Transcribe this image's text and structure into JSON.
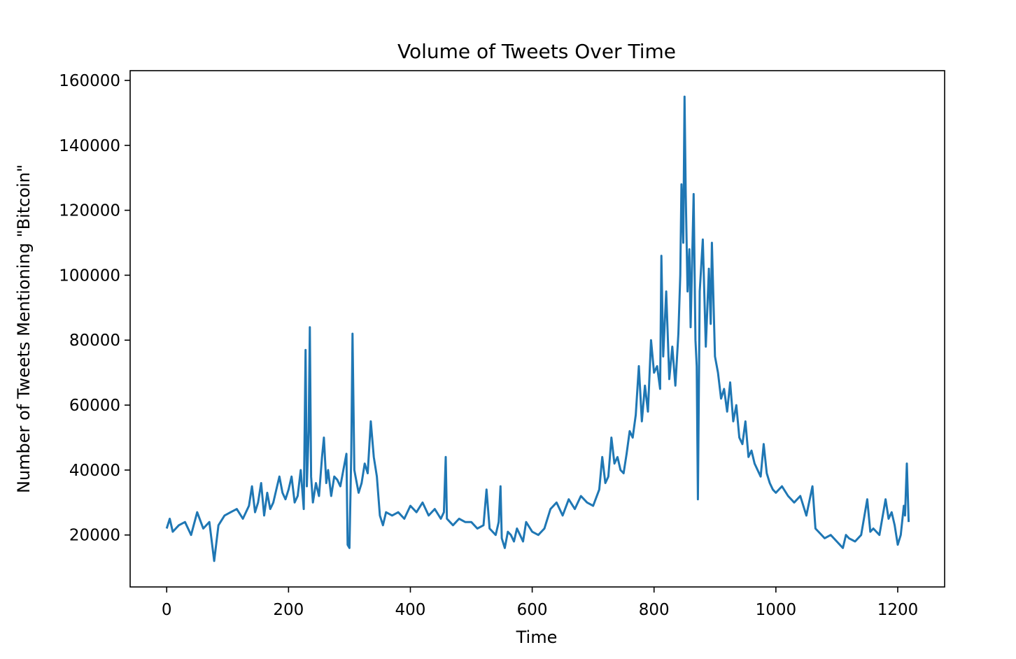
{
  "colors": {
    "series": "#1f77b4",
    "axes": "#000000",
    "background": "#ffffff"
  },
  "chart_data": {
    "type": "line",
    "title": "Volume of Tweets Over Time",
    "xlabel": "Time",
    "ylabel": "Number of Tweets Mentioning \"Bitcoin\"",
    "xlim": [
      -60,
      1277
    ],
    "ylim": [
      4000,
      163000
    ],
    "xticks": [
      0,
      200,
      400,
      600,
      800,
      1000,
      1200
    ],
    "xtick_labels": [
      "0",
      "200",
      "400",
      "600",
      "800",
      "1000",
      "1200"
    ],
    "yticks": [
      20000,
      40000,
      60000,
      80000,
      100000,
      120000,
      140000,
      160000
    ],
    "ytick_labels": [
      "20000",
      "40000",
      "60000",
      "80000",
      "100000",
      "120000",
      "140000",
      "160000"
    ],
    "grid": false,
    "legend": "none",
    "series": [
      {
        "x": [
          0,
          5,
          10,
          20,
          30,
          40,
          50,
          60,
          70,
          78,
          85,
          95,
          105,
          115,
          125,
          135,
          140,
          145,
          150,
          155,
          160,
          165,
          170,
          175,
          180,
          185,
          190,
          195,
          200,
          205,
          210,
          215,
          220,
          225,
          228,
          230,
          233,
          235,
          237,
          240,
          245,
          250,
          255,
          258,
          262,
          265,
          270,
          275,
          280,
          285,
          290,
          295,
          297,
          300,
          303,
          305,
          308,
          310,
          315,
          320,
          325,
          330,
          335,
          340,
          345,
          350,
          355,
          360,
          370,
          380,
          390,
          400,
          410,
          420,
          430,
          440,
          450,
          455,
          458,
          460,
          465,
          470,
          480,
          490,
          500,
          510,
          520,
          525,
          530,
          540,
          545,
          548,
          550,
          555,
          560,
          565,
          570,
          575,
          580,
          585,
          590,
          600,
          610,
          620,
          630,
          640,
          650,
          660,
          670,
          680,
          690,
          700,
          710,
          715,
          720,
          725,
          730,
          735,
          740,
          745,
          750,
          755,
          760,
          765,
          770,
          775,
          780,
          785,
          790,
          795,
          800,
          805,
          810,
          812,
          815,
          820,
          825,
          830,
          835,
          840,
          843,
          845,
          848,
          850,
          852,
          855,
          858,
          860,
          865,
          868,
          870,
          872,
          875,
          880,
          885,
          890,
          893,
          895,
          900,
          905,
          910,
          915,
          920,
          925,
          930,
          935,
          940,
          945,
          950,
          955,
          960,
          965,
          970,
          975,
          980,
          985,
          990,
          995,
          1000,
          1010,
          1020,
          1030,
          1040,
          1050,
          1060,
          1065,
          1070,
          1080,
          1090,
          1100,
          1110,
          1115,
          1120,
          1130,
          1140,
          1150,
          1155,
          1160,
          1170,
          1180,
          1185,
          1190,
          1195,
          1200,
          1205,
          1210,
          1212,
          1215,
          1218
        ],
        "y": [
          22000,
          25000,
          21000,
          23000,
          24000,
          20000,
          27000,
          22000,
          24000,
          12000,
          23000,
          26000,
          27000,
          28000,
          25000,
          29000,
          35000,
          27000,
          30000,
          36000,
          26000,
          33000,
          28000,
          30000,
          34000,
          38000,
          33000,
          31000,
          34000,
          38000,
          30000,
          32000,
          40000,
          28000,
          77000,
          35000,
          52000,
          84000,
          38000,
          30000,
          36000,
          32000,
          44000,
          50000,
          36000,
          40000,
          32000,
          38000,
          37000,
          35000,
          40000,
          45000,
          17000,
          16000,
          45000,
          82000,
          40000,
          38000,
          33000,
          36000,
          42000,
          39000,
          55000,
          44000,
          38000,
          26000,
          23000,
          27000,
          26000,
          27000,
          25000,
          29000,
          27000,
          30000,
          26000,
          28000,
          25000,
          27000,
          44000,
          25000,
          24000,
          23000,
          25000,
          24000,
          24000,
          22000,
          23000,
          34000,
          22000,
          20000,
          24000,
          35000,
          19000,
          16000,
          21000,
          20000,
          18000,
          22000,
          20000,
          18000,
          24000,
          21000,
          20000,
          22000,
          28000,
          30000,
          26000,
          31000,
          28000,
          32000,
          30000,
          29000,
          34000,
          44000,
          36000,
          38000,
          50000,
          42000,
          44000,
          40000,
          39000,
          45000,
          52000,
          50000,
          57000,
          72000,
          55000,
          66000,
          58000,
          80000,
          70000,
          72000,
          65000,
          106000,
          75000,
          95000,
          68000,
          78000,
          66000,
          82000,
          100000,
          128000,
          110000,
          155000,
          125000,
          95000,
          108000,
          84000,
          125000,
          80000,
          72000,
          31000,
          95000,
          111000,
          78000,
          102000,
          85000,
          110000,
          75000,
          70000,
          62000,
          65000,
          58000,
          67000,
          55000,
          60000,
          50000,
          48000,
          55000,
          44000,
          46000,
          42000,
          40000,
          38000,
          48000,
          39000,
          36000,
          34000,
          33000,
          35000,
          32000,
          30000,
          32000,
          26000,
          35000,
          22000,
          21000,
          19000,
          20000,
          18000,
          16000,
          20000,
          19000,
          18000,
          20000,
          31000,
          21000,
          22000,
          20000,
          31000,
          25000,
          27000,
          23000,
          17000,
          20000,
          29000,
          26000,
          42000,
          24000
        ]
      }
    ]
  }
}
